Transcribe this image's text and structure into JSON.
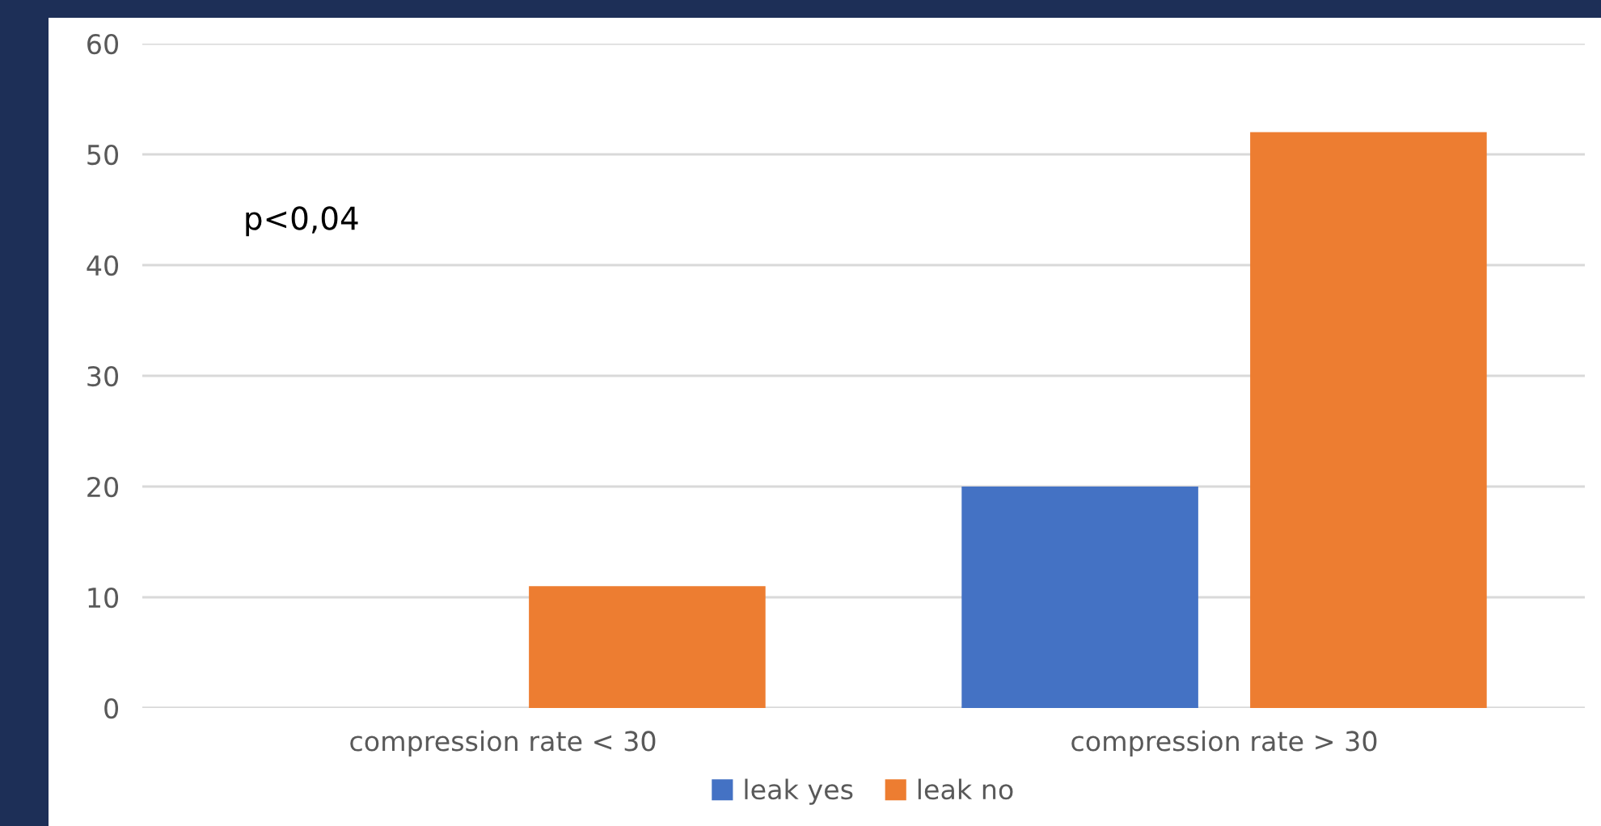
{
  "chart_data": {
    "type": "bar",
    "categories": [
      "compression rate < 30",
      "compression rate > 30"
    ],
    "series": [
      {
        "name": "leak yes",
        "color": "#4472c4",
        "values": [
          0,
          20
        ]
      },
      {
        "name": "leak no",
        "color": "#ed7d31",
        "values": [
          11,
          52
        ]
      }
    ],
    "ylim": [
      0,
      60
    ],
    "yticks": [
      0,
      10,
      20,
      30,
      40,
      50,
      60
    ],
    "grid": "y",
    "legend": "bottom",
    "annotations": [
      "p<0,04"
    ]
  }
}
